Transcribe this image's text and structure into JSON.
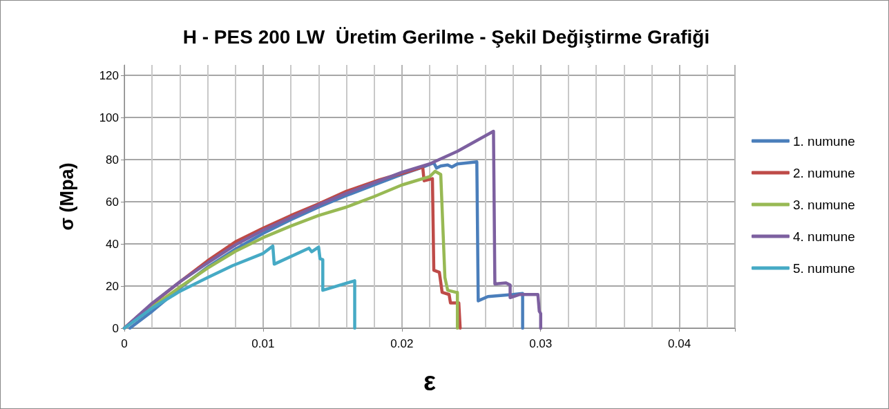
{
  "chart_data": {
    "type": "line",
    "title": "H - PES 200 LW  Üretim Gerilme - Şekil Değiştirme Grafiği",
    "xlabel": "ε",
    "ylabel": "σ (Mpa)",
    "xlim": [
      0,
      0.044
    ],
    "xticks": [
      0,
      0.01,
      0.02,
      0.03,
      0.04
    ],
    "ylim": [
      0,
      125
    ],
    "yticks": [
      0,
      20,
      40,
      60,
      80,
      100,
      120
    ],
    "grid": true,
    "legend": "right",
    "marker": "none",
    "line_style": "solid",
    "series": [
      {
        "name": "1. numune",
        "color": "#4a7ebb",
        "x": [
          0.0004,
          0.002,
          0.004,
          0.006,
          0.008,
          0.01,
          0.012,
          0.014,
          0.016,
          0.018,
          0.02,
          0.0215,
          0.0223,
          0.0225,
          0.0228,
          0.0233,
          0.0236,
          0.024,
          0.0254,
          0.0255,
          0.0262,
          0.028,
          0.0287,
          0.0287
        ],
        "values": [
          0,
          8,
          19,
          29,
          37.5,
          45,
          51.5,
          57.5,
          63,
          68,
          73,
          76.5,
          78.5,
          76,
          77,
          77.5,
          76.5,
          78,
          79,
          13,
          15,
          16,
          16.5,
          0
        ]
      },
      {
        "name": "2. numune",
        "color": "#be4b48",
        "x": [
          0,
          0.002,
          0.004,
          0.006,
          0.008,
          0.01,
          0.012,
          0.014,
          0.016,
          0.0184,
          0.02,
          0.0215,
          0.0216,
          0.0222,
          0.0223,
          0.0227,
          0.0229,
          0.0234,
          0.0235,
          0.0241,
          0.0242
        ],
        "values": [
          0,
          11.5,
          22,
          32,
          41,
          47.5,
          53.5,
          59,
          65,
          70.5,
          73.5,
          76.5,
          70,
          71,
          27.5,
          26.5,
          17,
          16,
          12,
          12,
          0
        ]
      },
      {
        "name": "3. numune",
        "color": "#98b954",
        "x": [
          0,
          0.002,
          0.004,
          0.006,
          0.008,
          0.01,
          0.012,
          0.014,
          0.016,
          0.018,
          0.02,
          0.022,
          0.0224,
          0.0228,
          0.0231,
          0.0233,
          0.0239,
          0.024,
          0.024
        ],
        "values": [
          0,
          10,
          19.5,
          28.5,
          36.5,
          43,
          48.5,
          53.5,
          57.5,
          62.5,
          68,
          72,
          74.5,
          73,
          24,
          18,
          17,
          17,
          0
        ]
      },
      {
        "name": "4. numune",
        "color": "#7d60a0",
        "x": [
          0,
          0.002,
          0.004,
          0.006,
          0.008,
          0.01,
          0.012,
          0.014,
          0.016,
          0.018,
          0.02,
          0.022,
          0.024,
          0.0266,
          0.0267,
          0.0275,
          0.0278,
          0.0278,
          0.0285,
          0.0298,
          0.0299,
          0.03,
          0.03
        ],
        "values": [
          0,
          11.8,
          22,
          31,
          39.5,
          46.5,
          52.5,
          58.5,
          64,
          69,
          74,
          78,
          84,
          93.5,
          21,
          21.5,
          20.5,
          14.5,
          16,
          16,
          8,
          7,
          0
        ]
      },
      {
        "name": "5. numune",
        "color": "#46aac5",
        "x": [
          0,
          0.002,
          0.004,
          0.006,
          0.0078,
          0.01,
          0.0107,
          0.0108,
          0.0133,
          0.0135,
          0.014,
          0.0141,
          0.0143,
          0.0143,
          0.0166,
          0.0166
        ],
        "values": [
          0,
          9.5,
          17.5,
          24,
          29.7,
          35.5,
          39,
          30.4,
          38,
          36.3,
          38.5,
          33,
          32.5,
          18,
          22.5,
          0
        ]
      }
    ]
  }
}
